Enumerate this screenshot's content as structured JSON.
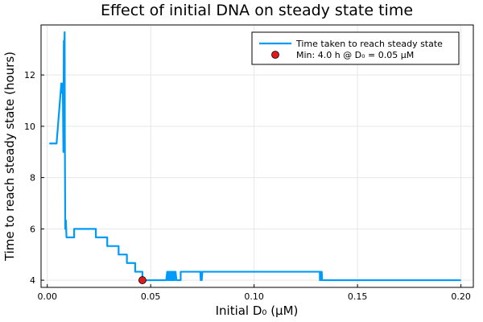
{
  "chart_data": {
    "type": "line",
    "title": "Effect of initial DNA on steady state time",
    "xlabel": "Initial D₀ (μM)",
    "ylabel": "Time to reach steady state (hours)",
    "xlim": [
      -0.003,
      0.206
    ],
    "ylim": [
      3.72,
      13.95
    ],
    "xticks": [
      {
        "value": 0.0,
        "label": "0.00"
      },
      {
        "value": 0.05,
        "label": "0.05"
      },
      {
        "value": 0.1,
        "label": "0.10"
      },
      {
        "value": 0.15,
        "label": "0.15"
      },
      {
        "value": 0.2,
        "label": "0.20"
      }
    ],
    "yticks": [
      {
        "value": 4,
        "label": "4"
      },
      {
        "value": 6,
        "label": "6"
      },
      {
        "value": 8,
        "label": "8"
      },
      {
        "value": 10,
        "label": "10"
      },
      {
        "value": 12,
        "label": "12"
      }
    ],
    "grid": true,
    "legend_position": "top-right",
    "series": [
      {
        "name": "Time taken to reach steady state",
        "color": "#009af9",
        "kind": "line",
        "x": [
          0.001,
          0.0045,
          0.0068,
          0.0072,
          0.0075,
          0.0078,
          0.008,
          0.0082,
          0.0084,
          0.0085,
          0.0087,
          0.009,
          0.0093,
          0.0095,
          0.013,
          0.013,
          0.0235,
          0.0235,
          0.029,
          0.029,
          0.0345,
          0.0345,
          0.0385,
          0.0385,
          0.0425,
          0.0425,
          0.046,
          0.046,
          0.0575,
          0.058,
          0.0582,
          0.0585,
          0.0587,
          0.059,
          0.0592,
          0.0595,
          0.0597,
          0.06,
          0.0602,
          0.0605,
          0.0607,
          0.061,
          0.0612,
          0.0615,
          0.0617,
          0.062,
          0.0625,
          0.0645,
          0.0645,
          0.074,
          0.0742,
          0.0745,
          0.0747,
          0.075,
          0.1318,
          0.1318,
          0.1322,
          0.1324,
          0.1327,
          0.1329,
          0.2
        ],
        "y": [
          9.33,
          9.33,
          11.67,
          11.3,
          11.67,
          9.0,
          13.33,
          12.67,
          13.67,
          9.5,
          6.0,
          6.33,
          5.67,
          5.67,
          5.67,
          6.0,
          6.0,
          5.67,
          5.67,
          5.33,
          5.33,
          5.0,
          5.0,
          4.67,
          4.67,
          4.33,
          4.33,
          4.0,
          4.0,
          4.33,
          4.0,
          4.33,
          4.0,
          4.33,
          4.0,
          4.33,
          4.0,
          4.33,
          4.0,
          4.33,
          4.0,
          4.33,
          4.0,
          4.33,
          4.0,
          4.33,
          4.0,
          4.0,
          4.33,
          4.33,
          4.0,
          4.33,
          4.0,
          4.33,
          4.33,
          4.0,
          4.33,
          4.0,
          4.33,
          4.0,
          4.0
        ]
      },
      {
        "name": "Min: 4.0 h @ D₀ = 0.05 μM",
        "color": "#e31a1c",
        "kind": "point",
        "x": [
          0.046
        ],
        "y": [
          4.0
        ]
      }
    ]
  }
}
